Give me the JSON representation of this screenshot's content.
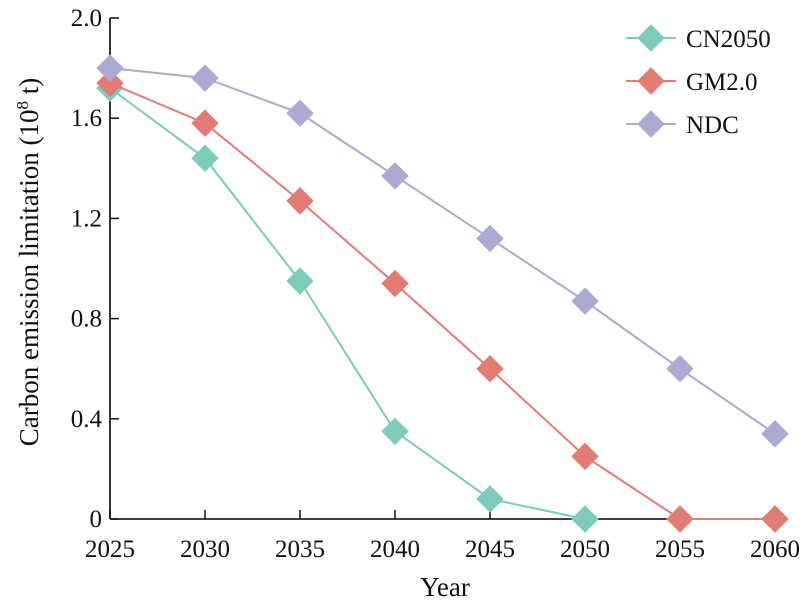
{
  "chart_data": {
    "type": "line",
    "title": "",
    "xlabel": "Year",
    "ylabel": "Carbon emission limitation (10",
    "ylabel_sup": "8",
    "ylabel_suffix": " t)",
    "x": [
      2025,
      2030,
      2035,
      2040,
      2045,
      2050,
      2055,
      2060
    ],
    "x_tick_labels": [
      "2025",
      "2030",
      "2035",
      "2040",
      "2045",
      "2050",
      "2055",
      "2060"
    ],
    "xlim": [
      2025,
      2060
    ],
    "ylim": [
      0,
      2.0
    ],
    "y_ticks": [
      0,
      0.4,
      0.8,
      1.2,
      1.6,
      2.0
    ],
    "y_tick_labels": [
      "0",
      "0.4",
      "0.8",
      "1.2",
      "1.6",
      "2.0"
    ],
    "grid": false,
    "legend_position": "top-right",
    "series": [
      {
        "name": "CN2050",
        "color": "#7ccbbd",
        "marker": "diamond",
        "x": [
          2025,
          2030,
          2035,
          2040,
          2045,
          2050
        ],
        "values": [
          1.72,
          1.44,
          0.95,
          0.35,
          0.08,
          0.0
        ]
      },
      {
        "name": "GM2.0",
        "color": "#e47a74",
        "marker": "diamond",
        "x": [
          2025,
          2030,
          2035,
          2040,
          2045,
          2050,
          2055,
          2060
        ],
        "values": [
          1.74,
          1.58,
          1.27,
          0.94,
          0.6,
          0.25,
          0.0,
          0.0
        ]
      },
      {
        "name": "NDC",
        "color": "#aaaad2",
        "marker": "diamond",
        "x": [
          2025,
          2030,
          2035,
          2040,
          2045,
          2050,
          2055,
          2060
        ],
        "values": [
          1.8,
          1.76,
          1.62,
          1.37,
          1.12,
          0.87,
          0.6,
          0.34
        ]
      }
    ]
  }
}
